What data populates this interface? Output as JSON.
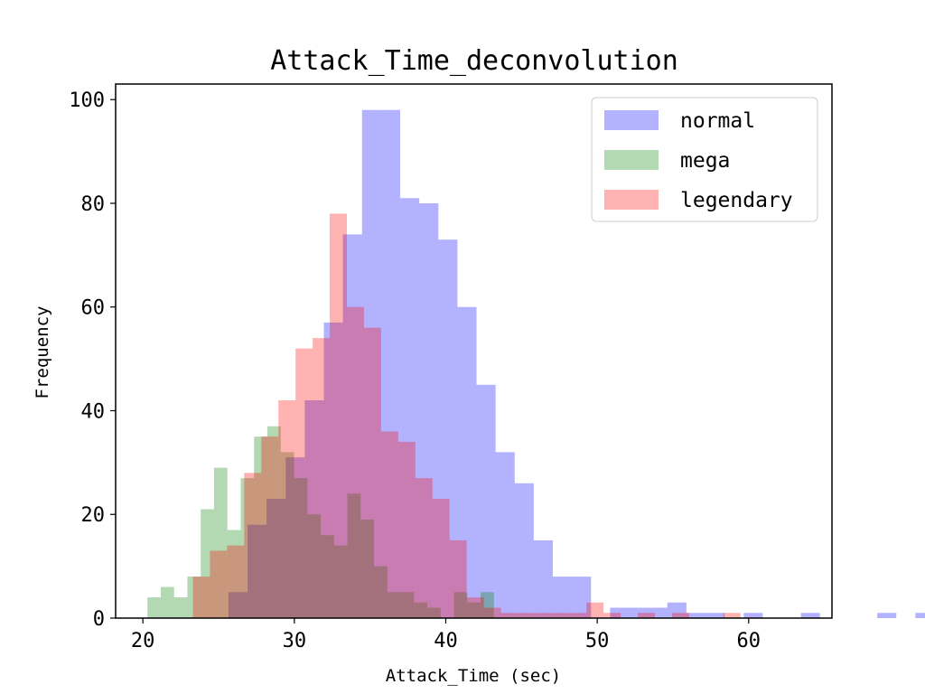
{
  "chart_data": {
    "type": "bar",
    "title": "Attack_Time_deconvolution",
    "xlabel": "Attack_Time (sec)",
    "ylabel": "Frequency",
    "xlim": [
      18.2,
      65.5
    ],
    "ylim": [
      0,
      103
    ],
    "xticks": [
      20,
      30,
      40,
      50,
      60
    ],
    "yticks": [
      0,
      20,
      40,
      60,
      80,
      100
    ],
    "grid": false,
    "legend_position": "top-right",
    "series": [
      {
        "name": "normal",
        "color": "#0000ff",
        "opacity": 0.3,
        "bin_start": 25.65,
        "bin_width": 1.26,
        "values": [
          5,
          18,
          23,
          31,
          42,
          57,
          74,
          98,
          98,
          81,
          80,
          73,
          60,
          45,
          32,
          26,
          15,
          8,
          8,
          0,
          2,
          2,
          2,
          3,
          1,
          1,
          0,
          1,
          0,
          0,
          1,
          0,
          0,
          0,
          1,
          0,
          1,
          1
        ]
      },
      {
        "name": "mega",
        "color": "#008000",
        "opacity": 0.3,
        "bin_start": 20.3,
        "bin_width": 0.88,
        "values": [
          4,
          6,
          4,
          8,
          21,
          29,
          17,
          27,
          35,
          37,
          32,
          27,
          20,
          16,
          14,
          24,
          19,
          10,
          5,
          5,
          3,
          2,
          0,
          5,
          3,
          5
        ]
      },
      {
        "name": "legendary",
        "color": "#ff0000",
        "opacity": 0.3,
        "bin_start": 23.3,
        "bin_width": 1.13,
        "values": [
          8,
          13,
          14,
          28,
          35,
          42,
          52,
          54,
          78,
          60,
          56,
          36,
          34,
          27,
          23,
          15,
          4,
          2,
          1,
          1,
          1,
          1,
          1,
          3,
          1,
          0,
          1,
          0,
          1,
          0,
          0,
          1
        ]
      }
    ]
  }
}
